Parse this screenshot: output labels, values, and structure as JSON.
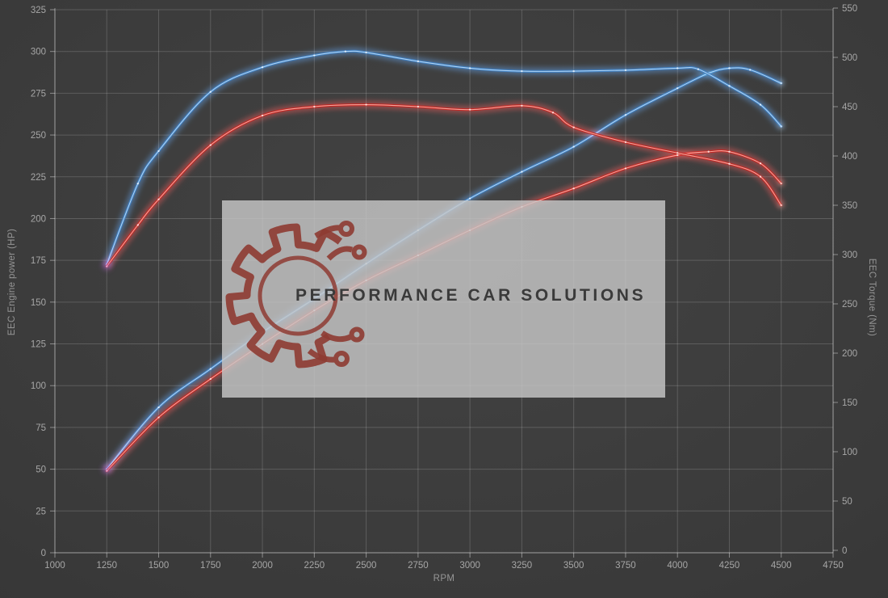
{
  "watermark": {
    "text": "PERFORMANCE CAR SOLUTIONS",
    "logo": "gear-circuit"
  },
  "colors": {
    "background_center": "#434343",
    "background_edge": "#2e2e2e",
    "grid": "rgba(255,255,255,0.17)",
    "axis": "rgba(255,255,255,0.42)",
    "tick_text": "#a6a6a6",
    "axis_title_text": "#969696",
    "blue_main": "#3f7fc1",
    "blue_glow": "#2d7dd6",
    "blue_core": "#badbf7",
    "red_main": "#c42824",
    "red_glow": "#e32222",
    "red_core": "#f7b3aa",
    "start_glow": "#b36ae0",
    "watermark_bg": "rgba(199,199,199,0.82)",
    "watermark_text": "#3a3a3a",
    "logo_red": "#8e3b32"
  },
  "chart_data": {
    "type": "line",
    "title": "",
    "xlabel": "RPM",
    "ylabel_left": "EEC Engine power (HP)",
    "ylabel_right": "EEC Torque (Nm)",
    "grid": true,
    "legend": "none",
    "x_range": [
      1000,
      4750
    ],
    "y_left_range": [
      0,
      325
    ],
    "y_right_range": [
      0,
      550
    ],
    "x_ticks": [
      1000,
      1250,
      1500,
      1750,
      2000,
      2250,
      2500,
      2750,
      3000,
      3250,
      3500,
      3750,
      4000,
      4250,
      4500,
      4750
    ],
    "y_left_ticks": [
      0,
      25,
      50,
      75,
      100,
      125,
      150,
      175,
      200,
      225,
      250,
      275,
      300,
      325
    ],
    "y_right_ticks": [
      0,
      50,
      100,
      150,
      200,
      250,
      300,
      350,
      400,
      450,
      500,
      550
    ],
    "series": [
      {
        "name": "power-blue",
        "unit": "HP",
        "axis": "left",
        "color_key": "blue",
        "points": [
          [
            1250,
            50
          ],
          [
            1500,
            87
          ],
          [
            1750,
            110
          ],
          [
            2000,
            132
          ],
          [
            2250,
            152
          ],
          [
            2500,
            173
          ],
          [
            2750,
            193
          ],
          [
            3000,
            212
          ],
          [
            3250,
            228
          ],
          [
            3500,
            243
          ],
          [
            3750,
            262
          ],
          [
            4000,
            278
          ],
          [
            4150,
            287
          ],
          [
            4250,
            290
          ],
          [
            4350,
            289
          ],
          [
            4500,
            281
          ]
        ]
      },
      {
        "name": "power-red",
        "unit": "HP",
        "axis": "left",
        "color_key": "red",
        "points": [
          [
            1250,
            49
          ],
          [
            1500,
            81
          ],
          [
            1750,
            104
          ],
          [
            2000,
            125
          ],
          [
            2250,
            145
          ],
          [
            2500,
            163
          ],
          [
            2750,
            178
          ],
          [
            3000,
            193
          ],
          [
            3250,
            207
          ],
          [
            3500,
            218
          ],
          [
            3750,
            230
          ],
          [
            4000,
            238
          ],
          [
            4150,
            240
          ],
          [
            4250,
            240
          ],
          [
            4400,
            233
          ],
          [
            4500,
            221
          ]
        ]
      },
      {
        "name": "torque-blue",
        "unit": "Nm",
        "axis": "right",
        "color_key": "blue",
        "points": [
          [
            1250,
            290
          ],
          [
            1400,
            372
          ],
          [
            1500,
            405
          ],
          [
            1750,
            465
          ],
          [
            2000,
            490
          ],
          [
            2250,
            502
          ],
          [
            2400,
            506
          ],
          [
            2500,
            505
          ],
          [
            2750,
            496
          ],
          [
            3000,
            489
          ],
          [
            3250,
            486
          ],
          [
            3500,
            486
          ],
          [
            3750,
            487
          ],
          [
            4000,
            489
          ],
          [
            4100,
            488
          ],
          [
            4250,
            471
          ],
          [
            4400,
            452
          ],
          [
            4500,
            430
          ]
        ]
      },
      {
        "name": "torque-red",
        "unit": "Nm",
        "axis": "right",
        "color_key": "red",
        "points": [
          [
            1250,
            288
          ],
          [
            1400,
            330
          ],
          [
            1500,
            356
          ],
          [
            1750,
            411
          ],
          [
            2000,
            441
          ],
          [
            2250,
            450
          ],
          [
            2500,
            452
          ],
          [
            2750,
            450
          ],
          [
            3000,
            447
          ],
          [
            3250,
            451
          ],
          [
            3400,
            444
          ],
          [
            3500,
            429
          ],
          [
            3750,
            414
          ],
          [
            4000,
            403
          ],
          [
            4250,
            392
          ],
          [
            4400,
            379
          ],
          [
            4500,
            350
          ]
        ]
      }
    ]
  }
}
